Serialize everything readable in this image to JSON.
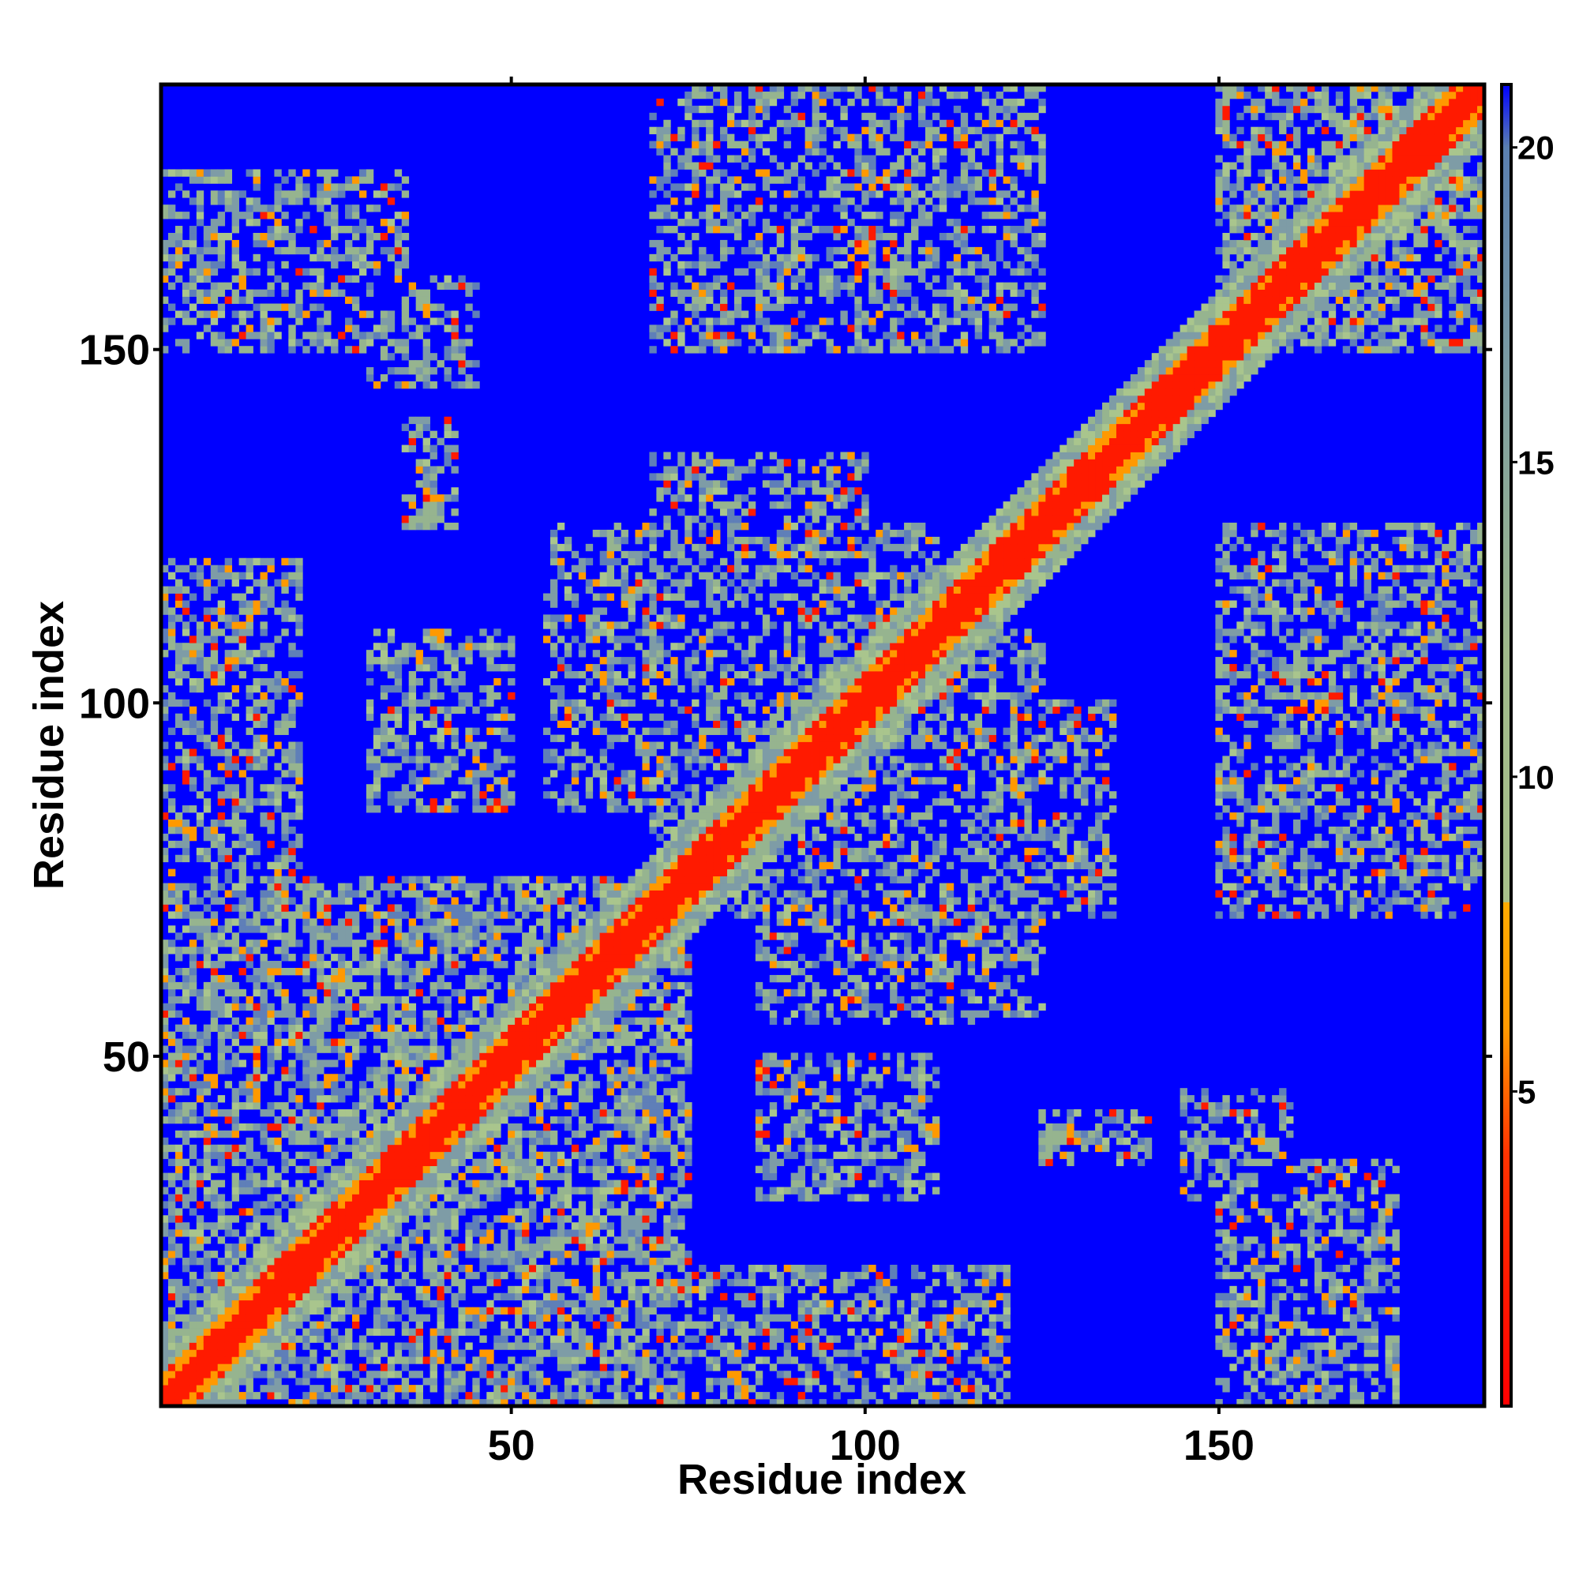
{
  "chart_data": {
    "type": "heatmap",
    "title": "",
    "xlabel": "Residue index",
    "ylabel": "Residue index",
    "x_range": [
      1,
      187
    ],
    "y_range": [
      1,
      187
    ],
    "x_ticks": [
      "50",
      "100",
      "150"
    ],
    "y_ticks": [
      "50",
      "100",
      "150"
    ],
    "x_tick_values": [
      50,
      100,
      150
    ],
    "y_tick_values": [
      50,
      100,
      150
    ],
    "colorbar": {
      "ticks": [
        "5",
        "10",
        "15",
        "20"
      ],
      "tick_values": [
        5,
        10,
        15,
        20
      ],
      "range": [
        0,
        21
      ],
      "stops": [
        {
          "value": 0,
          "color": "#ff0000"
        },
        {
          "value": 4,
          "color": "#ff3300"
        },
        {
          "value": 6,
          "color": "#ff9900"
        },
        {
          "value": 8,
          "color": "#ffaa00"
        },
        {
          "value": 8.01,
          "color": "#a8c08a"
        },
        {
          "value": 12,
          "color": "#9fb98a"
        },
        {
          "value": 16,
          "color": "#7f9fa0"
        },
        {
          "value": 20,
          "color": "#5a7fb0"
        },
        {
          "value": 21,
          "color": "#0000ff"
        }
      ]
    },
    "contact_regions": [
      {
        "i": [
          1,
          187
        ],
        "j": [
          1,
          187
        ],
        "band": "diagonal"
      },
      {
        "i": [
          1,
          75
        ],
        "j": [
          1,
          75
        ],
        "level": "dense"
      },
      {
        "i": [
          1,
          20
        ],
        "j": [
          1,
          40
        ],
        "level": "contacts"
      },
      {
        "i": [
          30,
          75
        ],
        "j": [
          1,
          20
        ],
        "level": "contacts"
      },
      {
        "i": [
          75,
          120
        ],
        "j": [
          1,
          20
        ],
        "level": "contacts"
      },
      {
        "i": [
          1,
          20
        ],
        "j": [
          85,
          110
        ],
        "level": "contacts"
      },
      {
        "i": [
          30,
          50
        ],
        "j": [
          85,
          110
        ],
        "level": "contacts"
      },
      {
        "i": [
          55,
          110
        ],
        "j": [
          85,
          125
        ],
        "level": "contacts"
      },
      {
        "i": [
          80,
          135
        ],
        "j": [
          70,
          100
        ],
        "level": "contacts"
      },
      {
        "i": [
          85,
          110
        ],
        "j": [
          55,
          75
        ],
        "level": "contacts"
      },
      {
        "i": [
          1,
          35
        ],
        "j": [
          160,
          175
        ],
        "level": "contacts"
      },
      {
        "i": [
          30,
          45
        ],
        "j": [
          145,
          155
        ],
        "level": "contacts"
      },
      {
        "i": [
          70,
          100
        ],
        "j": [
          150,
          185
        ],
        "level": "contacts"
      },
      {
        "i": [
          105,
          125
        ],
        "j": [
          160,
          185
        ],
        "level": "contacts"
      },
      {
        "i": [
          150,
          187
        ],
        "j": [
          150,
          187
        ],
        "level": "dense"
      },
      {
        "i": [
          150,
          187
        ],
        "j": [
          75,
          125
        ],
        "level": "contacts"
      },
      {
        "i": [
          150,
          175
        ],
        "j": [
          1,
          30
        ],
        "level": "contacts"
      },
      {
        "i": [
          150,
          160
        ],
        "j": [
          35,
          45
        ],
        "level": "contacts"
      },
      {
        "i": [
          125,
          140
        ],
        "j": [
          35,
          42
        ],
        "level": "contacts"
      }
    ]
  }
}
